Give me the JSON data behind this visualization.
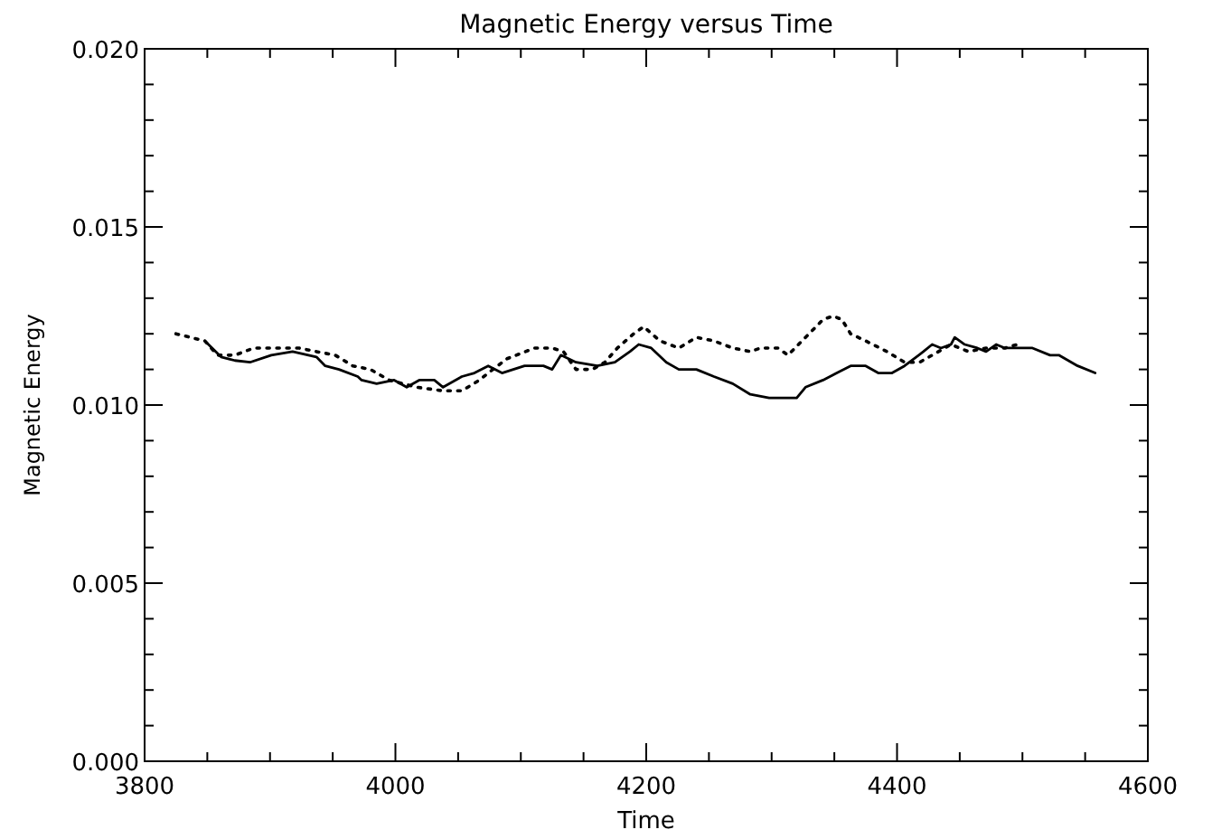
{
  "chart_data": {
    "type": "line",
    "title": "Magnetic Energy versus Time",
    "xlabel": "Time",
    "ylabel": "Magnetic Energy",
    "xlim": [
      3800,
      4600
    ],
    "ylim": [
      0,
      0.02
    ],
    "xticks": [
      3800,
      {
        "value": 3850,
        "label": null
      },
      {
        "value": 3900,
        "label": null
      },
      {
        "value": 3950,
        "label": null
      },
      4000,
      {
        "value": 4050,
        "label": null
      },
      {
        "value": 4100,
        "label": null
      },
      {
        "value": 4150,
        "label": null
      },
      4200,
      {
        "value": 4250,
        "label": null
      },
      {
        "value": 4300,
        "label": null
      },
      {
        "value": 4350,
        "label": null
      },
      4400,
      {
        "value": 4450,
        "label": null
      },
      {
        "value": 4500,
        "label": null
      },
      {
        "value": 4550,
        "label": null
      },
      4600
    ],
    "yticks": [
      {
        "value": 0,
        "label": "0.000"
      },
      {
        "value": 0.001,
        "label": null
      },
      {
        "value": 0.002,
        "label": null
      },
      {
        "value": 0.003,
        "label": null
      },
      {
        "value": 0.004,
        "label": null
      },
      0.005,
      {
        "value": 0.006,
        "label": null
      },
      {
        "value": 0.007,
        "label": null
      },
      {
        "value": 0.008,
        "label": null
      },
      {
        "value": 0.009,
        "label": null
      },
      {
        "value": 0.01,
        "label": "0.010"
      },
      {
        "value": 0.011,
        "label": null
      },
      {
        "value": 0.012,
        "label": null
      },
      {
        "value": 0.013,
        "label": null
      },
      {
        "value": 0.014,
        "label": null
      },
      0.015,
      {
        "value": 0.016,
        "label": null
      },
      {
        "value": 0.017,
        "label": null
      },
      {
        "value": 0.018,
        "label": null
      },
      {
        "value": 0.019,
        "label": null
      },
      {
        "value": 0.02,
        "label": "0.020"
      }
    ],
    "grid": false,
    "series": [
      {
        "color": "#000000",
        "line_style": "solid",
        "x": [
          3848,
          3861,
          3872,
          3884,
          3901,
          3918,
          3937,
          3944,
          3955,
          3970,
          3973,
          3985,
          3999,
          4009,
          4019,
          4031,
          4038,
          4053,
          4063,
          4074,
          4085,
          4103,
          4118,
          4125,
          4132,
          4144,
          4161,
          4175,
          4187,
          4194,
          4204,
          4216,
          4226,
          4240,
          4254,
          4269,
          4283,
          4298,
          4313,
          4320,
          4327,
          4341,
          4352,
          4363,
          4375,
          4385,
          4396,
          4406,
          4421,
          4428,
          4435,
          4443,
          4446,
          4454,
          4464,
          4471,
          4479,
          4486,
          4508,
          4522,
          4529,
          4544,
          4558
        ],
        "values": [
          0.0118,
          0.01135,
          0.01125,
          0.0112,
          0.0114,
          0.0115,
          0.01135,
          0.0111,
          0.011,
          0.0108,
          0.0107,
          0.0106,
          0.0107,
          0.0105,
          0.0107,
          0.0107,
          0.0105,
          0.0108,
          0.0109,
          0.0111,
          0.0109,
          0.0111,
          0.0111,
          0.011,
          0.0114,
          0.0112,
          0.0111,
          0.0112,
          0.0115,
          0.0117,
          0.0116,
          0.0112,
          0.011,
          0.011,
          0.0108,
          0.0106,
          0.0103,
          0.0102,
          0.0102,
          0.0102,
          0.0105,
          0.0107,
          0.0109,
          0.0111,
          0.0111,
          0.0109,
          0.0109,
          0.0111,
          0.0115,
          0.0117,
          0.0116,
          0.0117,
          0.0119,
          0.0117,
          0.0116,
          0.0115,
          0.0117,
          0.0116,
          0.0116,
          0.0114,
          0.0114,
          0.0111,
          0.0109
        ]
      },
      {
        "color": "#000000",
        "line_style": "dotted",
        "x": [
          3825,
          3848,
          3858,
          3872,
          3887,
          3901,
          3923,
          3937,
          3952,
          3966,
          3980,
          3995,
          4017,
          4038,
          4053,
          4067,
          4074,
          4089,
          4111,
          4125,
          4134,
          4144,
          4157,
          4167,
          4177,
          4190,
          4198,
          4211,
          4226,
          4240,
          4254,
          4269,
          4283,
          4291,
          4305,
          4313,
          4327,
          4341,
          4349,
          4356,
          4363,
          4375,
          4392,
          4406,
          4418,
          4428,
          4443,
          4457,
          4471,
          4486,
          4496
        ],
        "values": [
          0.012,
          0.0118,
          0.0114,
          0.0114,
          0.0116,
          0.0116,
          0.0116,
          0.0115,
          0.0114,
          0.0111,
          0.011,
          0.0107,
          0.0105,
          0.0104,
          0.0104,
          0.0107,
          0.0109,
          0.0113,
          0.0116,
          0.0116,
          0.0115,
          0.011,
          0.011,
          0.0112,
          0.0116,
          0.012,
          0.0122,
          0.0118,
          0.0116,
          0.0119,
          0.0118,
          0.0116,
          0.0115,
          0.0116,
          0.0116,
          0.0114,
          0.0119,
          0.0124,
          0.0125,
          0.0124,
          0.012,
          0.0118,
          0.0115,
          0.0112,
          0.0112,
          0.0114,
          0.0117,
          0.0115,
          0.0116,
          0.0116,
          0.0117
        ]
      }
    ]
  }
}
